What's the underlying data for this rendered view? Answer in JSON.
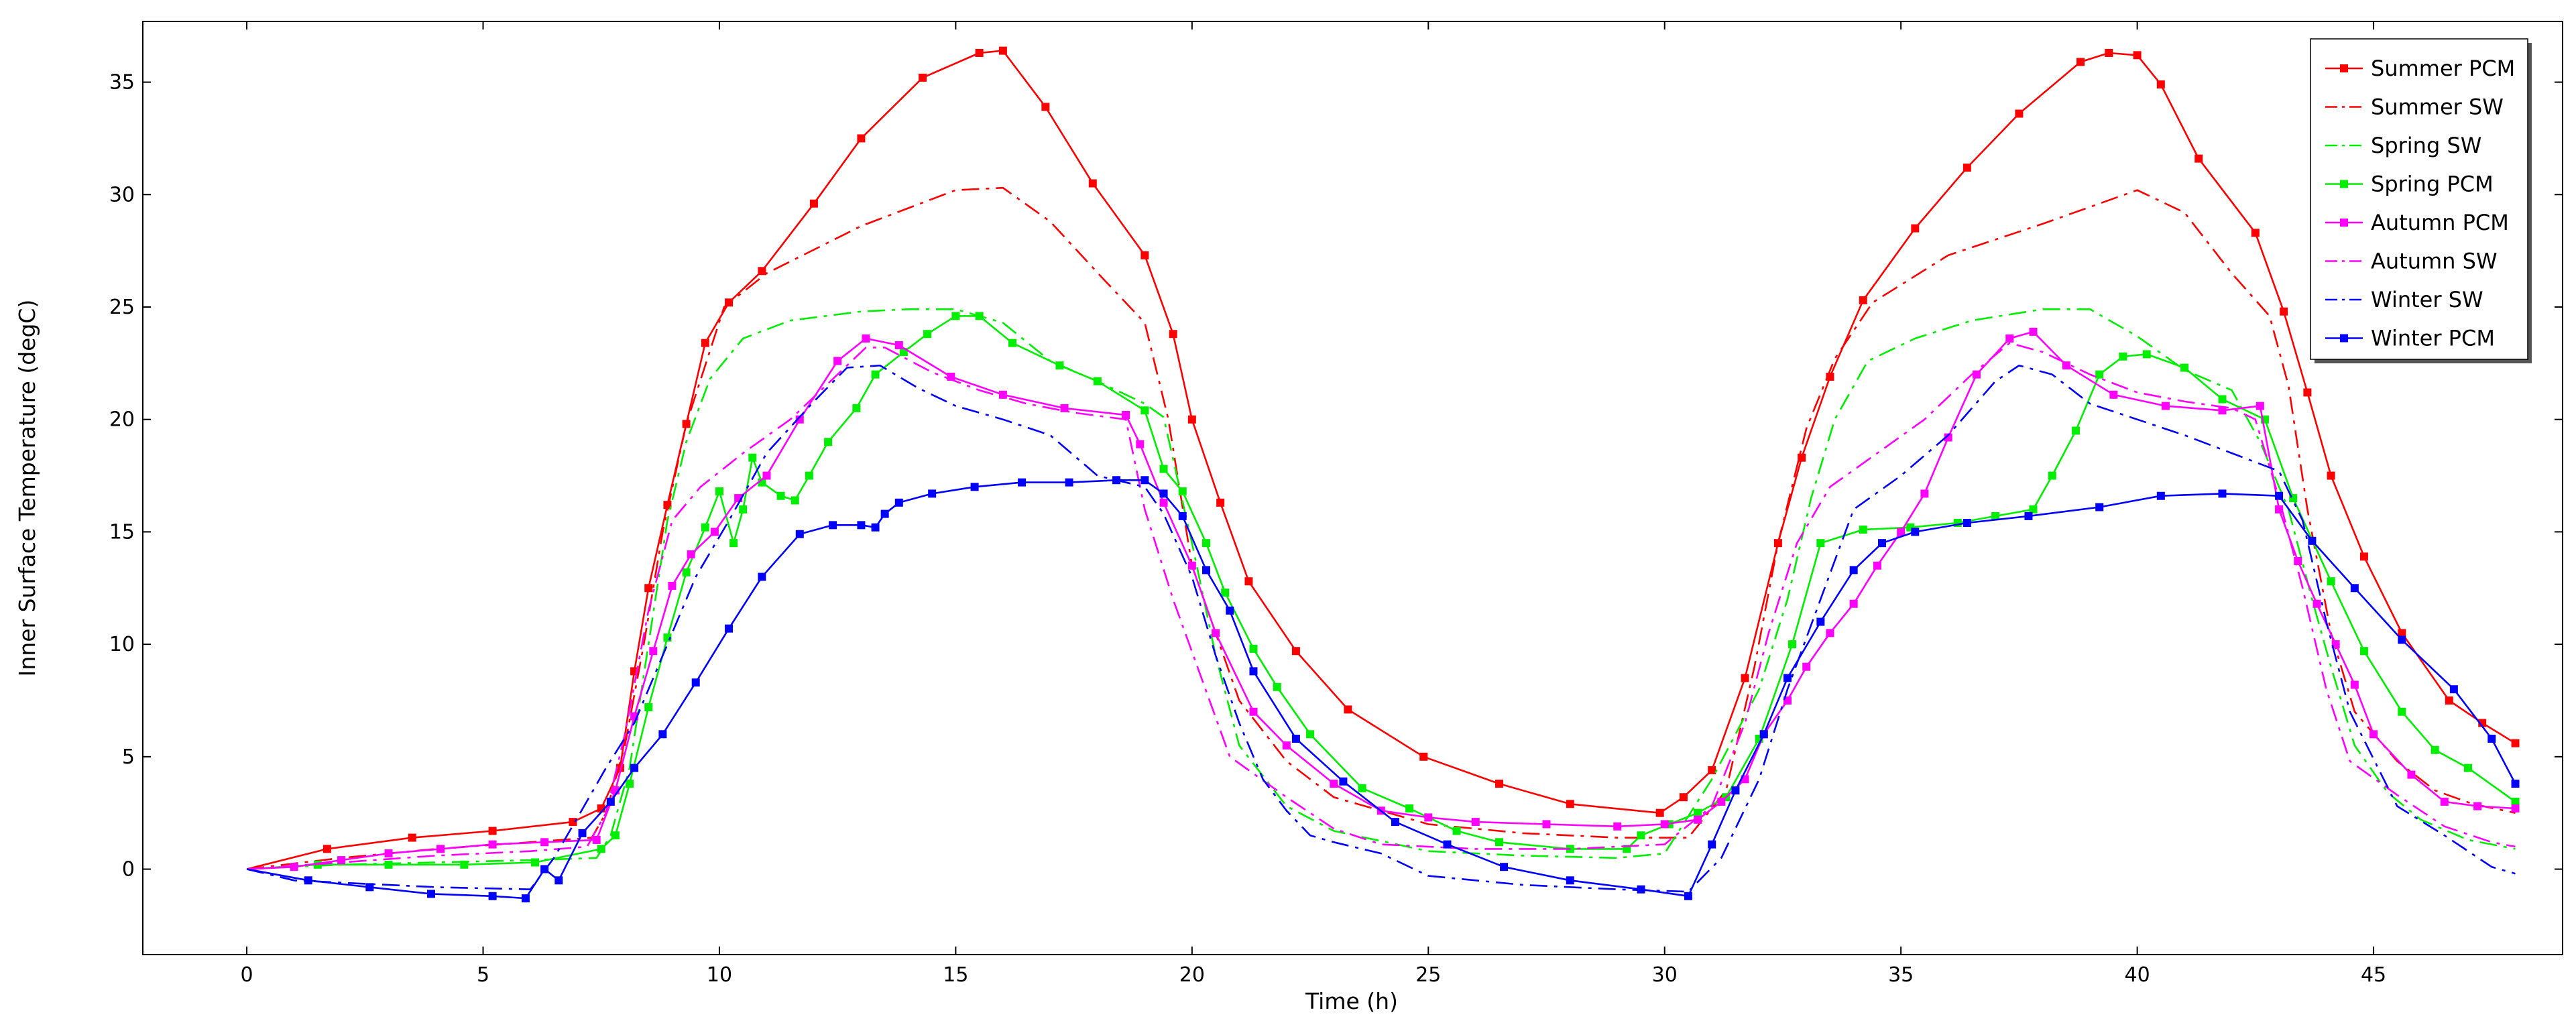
{
  "chart_data": {
    "type": "line",
    "title": "",
    "xlabel": "Time (h)",
    "ylabel": "Inner Surface Temperature (degC)",
    "xlim": [
      -2.2,
      49
    ],
    "ylim": [
      -3.8,
      37.7
    ],
    "xticks": [
      0,
      5,
      10,
      15,
      20,
      25,
      30,
      35,
      40,
      45
    ],
    "yticks": [
      0,
      5,
      10,
      15,
      20,
      25,
      30,
      35
    ],
    "grid": false,
    "legend_position": "top-right",
    "series": [
      {
        "name": "Summer PCM",
        "color": "#ff0000",
        "line_style": "solid",
        "marker": "square",
        "x": [
          0,
          1.7,
          3.5,
          5.2,
          6.9,
          7.5,
          7.9,
          8.2,
          8.5,
          8.9,
          9.3,
          9.7,
          10.2,
          10.9,
          12.0,
          13.0,
          14.3,
          15.5,
          16.0,
          16.9,
          17.9,
          19.0,
          19.6,
          20.0,
          20.6,
          21.2,
          22.2,
          23.3,
          24.9,
          26.5,
          28.0,
          29.9,
          30.4,
          31.0,
          31.7,
          32.4,
          32.9,
          33.5,
          34.2,
          35.3,
          36.4,
          37.5,
          38.8,
          39.4,
          40.0,
          40.5,
          41.3,
          42.5,
          43.1,
          43.6,
          44.1,
          44.8,
          45.6,
          46.6,
          47.3,
          48.0
        ],
        "y": [
          0,
          0.9,
          1.4,
          1.7,
          2.1,
          2.7,
          4.5,
          8.8,
          12.5,
          16.2,
          19.8,
          23.4,
          25.2,
          26.6,
          29.6,
          32.5,
          35.2,
          36.3,
          36.4,
          33.9,
          30.5,
          27.3,
          23.8,
          20.0,
          16.3,
          12.8,
          9.7,
          7.1,
          5.0,
          3.8,
          2.9,
          2.5,
          3.2,
          4.4,
          8.5,
          14.5,
          18.3,
          21.9,
          25.3,
          28.5,
          31.2,
          33.6,
          35.9,
          36.3,
          36.2,
          34.9,
          31.6,
          28.3,
          24.8,
          21.2,
          17.5,
          13.9,
          10.5,
          7.5,
          6.5,
          5.6
        ]
      },
      {
        "name": "Summer SW",
        "color": "#ff0000",
        "line_style": "dashdot",
        "marker": "none",
        "x": [
          0,
          2,
          4,
          6,
          7.3,
          7.6,
          8.0,
          8.4,
          8.8,
          9.3,
          10.1,
          11.0,
          13.0,
          15.0,
          16.0,
          17.0,
          18.1,
          19.0,
          19.5,
          20.0,
          21.0,
          22.0,
          23.0,
          25.0,
          27.0,
          29.0,
          30.5,
          31.3,
          31.9,
          32.4,
          33.0,
          33.6,
          34.4,
          36.0,
          38.0,
          40.0,
          41.0,
          42.0,
          42.8,
          43.2,
          43.6,
          44.1,
          44.6,
          45.5,
          46.3,
          47.1,
          48.0
        ],
        "y": [
          0,
          0.5,
          0.9,
          1.2,
          1.4,
          2.5,
          5.5,
          10.0,
          15.0,
          19.8,
          25.0,
          26.5,
          28.6,
          30.2,
          30.3,
          28.8,
          26.3,
          24.3,
          20.0,
          13.5,
          7.5,
          4.8,
          3.2,
          2.0,
          1.6,
          1.4,
          1.4,
          3.5,
          9.0,
          14.5,
          19.6,
          22.7,
          25.2,
          27.3,
          28.7,
          30.2,
          29.2,
          26.5,
          24.6,
          21.5,
          16.0,
          10.5,
          7.0,
          4.8,
          3.5,
          2.9,
          2.5
        ]
      },
      {
        "name": "Spring SW",
        "color": "#00ee00",
        "line_style": "dashdot",
        "marker": "none",
        "x": [
          0,
          2,
          4,
          6,
          7.4,
          7.7,
          8.1,
          8.5,
          8.9,
          9.3,
          9.8,
          10.5,
          11.5,
          13.0,
          14.0,
          15.0,
          16.0,
          17.0,
          18.0,
          19.0,
          19.4,
          20.0,
          20.5,
          21.0,
          22.0,
          23.0,
          25.0,
          27.0,
          29.0,
          30.0,
          31.0,
          32.0,
          32.6,
          33.1,
          33.6,
          34.3,
          35.3,
          36.5,
          38.0,
          39.0,
          40.0,
          41.0,
          42.0,
          42.6,
          43.2,
          43.7,
          44.1,
          44.6,
          45.3,
          46.0,
          47.0,
          48.0
        ],
        "y": [
          0,
          0.2,
          0.3,
          0.4,
          0.5,
          1.5,
          4.5,
          10.0,
          15.5,
          19.0,
          21.8,
          23.6,
          24.4,
          24.8,
          24.9,
          24.9,
          24.3,
          22.6,
          21.7,
          20.7,
          20.1,
          14.5,
          9.5,
          5.5,
          2.8,
          1.7,
          0.8,
          0.6,
          0.5,
          0.7,
          4.0,
          8.0,
          12.0,
          16.5,
          20.0,
          22.6,
          23.6,
          24.4,
          24.9,
          24.9,
          23.7,
          22.2,
          21.3,
          19.0,
          16.0,
          12.0,
          9.0,
          5.5,
          3.4,
          2.2,
          1.3,
          0.9
        ]
      },
      {
        "name": "Spring PCM",
        "color": "#00ee00",
        "line_style": "solid",
        "marker": "square",
        "x": [
          0,
          1.5,
          3.0,
          4.6,
          6.1,
          7.5,
          7.8,
          8.1,
          8.5,
          8.9,
          9.3,
          9.7,
          10.0,
          10.3,
          10.5,
          10.7,
          10.9,
          11.3,
          11.6,
          11.9,
          12.3,
          12.9,
          13.3,
          13.9,
          14.4,
          15.0,
          15.5,
          16.2,
          17.2,
          18.0,
          19.0,
          19.4,
          19.8,
          20.3,
          20.7,
          21.3,
          21.8,
          22.5,
          23.6,
          24.6,
          25.6,
          26.5,
          28.0,
          29.2,
          29.5,
          30.1,
          30.7,
          31.3,
          32.0,
          32.7,
          33.3,
          34.2,
          35.2,
          36.2,
          37.0,
          37.8,
          38.2,
          38.7,
          39.2,
          39.7,
          40.2,
          41.0,
          41.8,
          42.7,
          43.3,
          44.1,
          44.8,
          45.6,
          46.3,
          47.0,
          48.0
        ],
        "y": [
          0,
          0.2,
          0.2,
          0.2,
          0.3,
          0.9,
          1.5,
          3.8,
          7.2,
          10.3,
          13.2,
          15.2,
          16.8,
          14.5,
          16.0,
          18.3,
          17.2,
          16.6,
          16.4,
          17.5,
          19.0,
          20.5,
          22.0,
          23.0,
          23.8,
          24.6,
          24.6,
          23.4,
          22.4,
          21.7,
          20.4,
          17.8,
          16.8,
          14.5,
          12.3,
          9.8,
          8.1,
          6.0,
          3.6,
          2.7,
          1.7,
          1.2,
          0.9,
          0.9,
          1.5,
          2.0,
          2.5,
          3.2,
          5.8,
          10.0,
          14.5,
          15.1,
          15.2,
          15.4,
          15.7,
          16.0,
          17.5,
          19.5,
          22.0,
          22.8,
          22.9,
          22.3,
          20.9,
          20.0,
          16.5,
          12.8,
          9.7,
          7.0,
          5.3,
          4.5,
          3.0
        ]
      },
      {
        "name": "Autumn PCM",
        "color": "#ff00ff",
        "line_style": "solid",
        "marker": "square",
        "x": [
          0,
          1.0,
          2.0,
          3.0,
          4.1,
          5.2,
          6.3,
          7.4,
          7.8,
          8.2,
          8.6,
          9.0,
          9.4,
          9.9,
          10.4,
          11.0,
          11.7,
          12.5,
          13.1,
          13.8,
          14.9,
          16.0,
          17.3,
          18.6,
          18.9,
          19.4,
          20.0,
          20.5,
          21.3,
          22.0,
          23.0,
          24.0,
          25.0,
          26.0,
          27.5,
          29.0,
          30.0,
          30.7,
          31.2,
          31.7,
          32.1,
          32.6,
          33.0,
          33.5,
          34.0,
          34.5,
          35.0,
          35.5,
          36.0,
          36.6,
          37.3,
          37.8,
          38.5,
          39.5,
          40.6,
          41.8,
          42.6,
          43.0,
          43.4,
          43.8,
          44.2,
          44.6,
          45.0,
          45.8,
          46.5,
          47.2,
          48.0
        ],
        "y": [
          0,
          0.1,
          0.4,
          0.7,
          0.9,
          1.1,
          1.2,
          1.3,
          3.5,
          6.8,
          9.7,
          12.6,
          14.0,
          15.0,
          16.5,
          17.5,
          20.0,
          22.6,
          23.6,
          23.3,
          21.9,
          21.1,
          20.5,
          20.2,
          18.9,
          16.3,
          13.5,
          10.5,
          7.0,
          5.5,
          3.8,
          2.6,
          2.3,
          2.1,
          2.0,
          1.9,
          2.0,
          2.2,
          3.0,
          4.0,
          6.0,
          7.5,
          9.0,
          10.5,
          11.8,
          13.5,
          15.0,
          16.7,
          19.2,
          22.0,
          23.6,
          23.9,
          22.4,
          21.1,
          20.6,
          20.4,
          20.6,
          16.0,
          13.7,
          11.8,
          10.0,
          8.2,
          6.0,
          4.2,
          3.0,
          2.8,
          2.7
        ]
      },
      {
        "name": "Autumn SW",
        "color": "#ff00ff",
        "line_style": "dashdot",
        "marker": "none",
        "x": [
          0,
          2,
          4,
          6,
          7.2,
          7.6,
          8.0,
          8.5,
          9.0,
          9.6,
          10.5,
          11.5,
          12.5,
          13.1,
          13.5,
          14.5,
          15.5,
          16.5,
          17.5,
          18.6,
          19.0,
          19.6,
          20.2,
          20.8,
          22.0,
          23.0,
          24.0,
          26.0,
          28.0,
          30.0,
          31.0,
          31.7,
          32.2,
          32.8,
          33.5,
          34.5,
          35.5,
          36.5,
          37.3,
          38.0,
          39.0,
          40.0,
          41.0,
          42.0,
          42.5,
          43.0,
          43.5,
          44.0,
          44.5,
          45.5,
          46.5,
          47.5,
          48.0
        ],
        "y": [
          0,
          0.3,
          0.6,
          0.8,
          1.0,
          2.5,
          6.0,
          11.5,
          15.5,
          17.0,
          18.5,
          20.0,
          22.0,
          23.2,
          23.2,
          22.1,
          21.3,
          20.7,
          20.3,
          20.0,
          16.0,
          12.0,
          8.5,
          5.0,
          3.2,
          1.8,
          1.1,
          0.9,
          0.9,
          1.1,
          2.8,
          6.5,
          10.5,
          14.5,
          17.0,
          18.5,
          20.0,
          22.0,
          23.4,
          23.0,
          22.0,
          21.2,
          20.8,
          20.5,
          20.0,
          16.5,
          12.5,
          8.0,
          4.8,
          3.3,
          1.9,
          1.2,
          1.0
        ]
      },
      {
        "name": "Winter SW",
        "color": "#0000ff",
        "line_style": "dashdot",
        "marker": "none",
        "x": [
          0,
          1,
          2,
          4,
          6,
          6.5,
          7.0,
          7.6,
          8.2,
          8.8,
          9.5,
          10.2,
          11.0,
          12.0,
          12.7,
          13.4,
          14.2,
          15.0,
          16.0,
          17.0,
          18.0,
          19.0,
          19.4,
          20.0,
          20.5,
          21.0,
          21.5,
          22.0,
          22.5,
          23.0,
          24.0,
          25.0,
          27.0,
          29.0,
          30.5,
          31.2,
          32.0,
          32.6,
          33.3,
          34.0,
          35.0,
          36.0,
          37.0,
          37.5,
          38.2,
          39.0,
          40.0,
          41.0,
          42.0,
          43.0,
          43.5,
          44.0,
          44.5,
          45.5,
          46.5,
          47.5,
          48.0
        ],
        "y": [
          0,
          -0.5,
          -0.6,
          -0.8,
          -0.9,
          0.5,
          2.3,
          4.5,
          6.5,
          9.5,
          13.0,
          15.5,
          18.5,
          20.8,
          22.3,
          22.4,
          21.4,
          20.6,
          20.0,
          19.3,
          17.5,
          17.0,
          15.8,
          13.0,
          9.5,
          6.5,
          4.0,
          2.6,
          1.5,
          1.2,
          0.7,
          -0.3,
          -0.7,
          -0.9,
          -1.0,
          0.5,
          4.0,
          8.0,
          12.0,
          16.0,
          17.5,
          19.3,
          21.7,
          22.4,
          22.0,
          20.7,
          20.0,
          19.3,
          18.5,
          17.7,
          15.5,
          11.0,
          7.0,
          2.8,
          1.5,
          0.1,
          -0.2
        ]
      },
      {
        "name": "Winter PCM",
        "color": "#0000ff",
        "line_style": "solid",
        "marker": "square",
        "x": [
          0,
          1.3,
          2.6,
          3.9,
          5.2,
          5.9,
          6.3,
          6.6,
          7.1,
          7.7,
          8.2,
          8.8,
          9.5,
          10.2,
          10.9,
          11.7,
          12.4,
          13.0,
          13.3,
          13.5,
          13.8,
          14.5,
          15.4,
          16.4,
          17.4,
          18.4,
          19.0,
          19.4,
          19.8,
          20.3,
          20.8,
          21.3,
          22.2,
          23.2,
          24.3,
          25.4,
          26.6,
          28.0,
          29.5,
          30.5,
          31.0,
          31.5,
          32.1,
          32.6,
          33.3,
          34.0,
          34.6,
          35.3,
          36.4,
          37.7,
          39.2,
          40.5,
          41.8,
          43.0,
          43.7,
          44.6,
          45.6,
          46.7,
          47.5,
          48.0
        ],
        "y": [
          0,
          -0.5,
          -0.8,
          -1.1,
          -1.2,
          -1.3,
          0.0,
          -0.5,
          1.6,
          3.0,
          4.5,
          6.0,
          8.3,
          10.7,
          13.0,
          14.9,
          15.3,
          15.3,
          15.2,
          15.8,
          16.3,
          16.7,
          17.0,
          17.2,
          17.2,
          17.3,
          17.3,
          16.7,
          15.7,
          13.3,
          11.5,
          8.8,
          5.8,
          3.9,
          2.1,
          1.1,
          0.1,
          -0.5,
          -0.9,
          -1.2,
          1.1,
          3.5,
          6.0,
          8.5,
          11.0,
          13.3,
          14.5,
          15.0,
          15.4,
          15.7,
          16.1,
          16.6,
          16.7,
          16.6,
          14.6,
          12.5,
          10.2,
          8.0,
          5.8,
          3.8
        ]
      }
    ]
  }
}
